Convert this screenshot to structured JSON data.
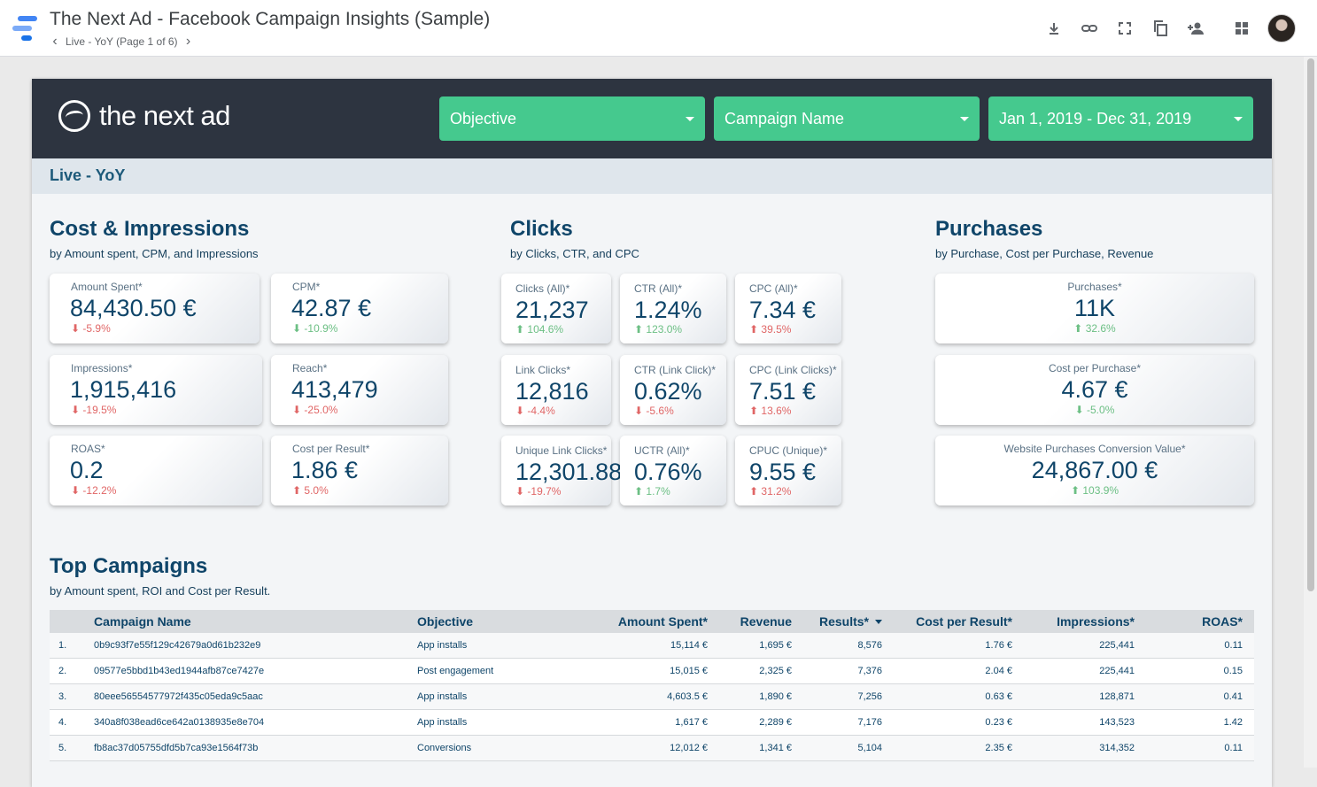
{
  "app": {
    "title": "The Next Ad - Facebook Campaign Insights (Sample)",
    "page_label": "Live - YoY (Page 1 of 6)"
  },
  "toolbar": {
    "icons": [
      "download-icon",
      "link-icon",
      "fullscreen-icon",
      "copy-icon",
      "add-person-icon",
      "apps-grid-icon"
    ]
  },
  "report": {
    "brand": "the next ad",
    "filters": {
      "objective": "Objective",
      "campaign": "Campaign Name",
      "date": "Jan 1, 2019 - Dec 31, 2019"
    },
    "page_name": "Live - YoY",
    "sections": {
      "cost": {
        "title": "Cost & Impressions",
        "subtitle": "by Amount spent, CPM, and Impressions"
      },
      "clicks": {
        "title": "Clicks",
        "subtitle": "by Clicks, CTR, and CPC"
      },
      "purchases": {
        "title": "Purchases",
        "subtitle": "by Purchase, Cost per Purchase, Revenue"
      },
      "top": {
        "title": "Top Campaigns",
        "subtitle": "by Amount spent, ROI and Cost per Result."
      }
    },
    "cards": {
      "amount_spent": {
        "label": "Amount Spent*",
        "value": "84,430.50 €",
        "delta": "-5.9%"
      },
      "cpm": {
        "label": "CPM*",
        "value": "42.87 €",
        "delta": "-10.9%"
      },
      "impressions": {
        "label": "Impressions*",
        "value": "1,915,416",
        "delta": "-19.5%"
      },
      "reach": {
        "label": "Reach*",
        "value": "413,479",
        "delta": "-25.0%"
      },
      "roas": {
        "label": "ROAS*",
        "value": "0.2",
        "delta": "-12.2%"
      },
      "cost_per_result": {
        "label": "Cost per Result*",
        "value": "1.86 €",
        "delta": "5.0%"
      },
      "clicks_all": {
        "label": "Clicks (All)*",
        "value": "21,237",
        "delta": "104.6%"
      },
      "ctr_all": {
        "label": "CTR (All)*",
        "value": "1.24%",
        "delta": "123.0%"
      },
      "cpc_all": {
        "label": "CPC (All)*",
        "value": "7.34 €",
        "delta": "39.5%"
      },
      "link_clicks": {
        "label": "Link Clicks*",
        "value": "12,816",
        "delta": "-4.4%"
      },
      "ctr_link": {
        "label": "CTR (Link Click)*",
        "value": "0.62%",
        "delta": "-5.6%"
      },
      "cpc_link": {
        "label": "CPC (Link Clicks)*",
        "value": "7.51 €",
        "delta": "13.6%"
      },
      "unique_link_clicks": {
        "label": "Unique Link Clicks*",
        "value": "12,301.88",
        "delta": "-19.7%"
      },
      "uctr": {
        "label": "UCTR (All)*",
        "value": "0.76%",
        "delta": "1.7%"
      },
      "cpuc": {
        "label": "CPUC (Unique)*",
        "value": "9.55 €",
        "delta": "31.2%"
      },
      "purchases": {
        "label": "Purchases*",
        "value": "11K",
        "delta": "32.6%"
      },
      "cost_per_purchase": {
        "label": "Cost per Purchase*",
        "value": "4.67 €",
        "delta": "-5.0%"
      },
      "conversion_value": {
        "label": "Website Purchases Conversion Value*",
        "value": "24,867.00 €",
        "delta": "103.9%"
      }
    },
    "table": {
      "headers": {
        "name": "Campaign Name",
        "objective": "Objective",
        "amount": "Amount Spent*",
        "revenue": "Revenue",
        "results": "Results*",
        "cpr": "Cost per Result*",
        "impressions": "Impressions*",
        "roas": "ROAS*"
      },
      "rows": [
        {
          "idx": "1.",
          "name": "0b9c93f7e55f129c42679a0d61b232e9",
          "objective": "App installs",
          "amount": "15,114 €",
          "revenue": "1,695 €",
          "results": "8,576",
          "cpr": "1.76 €",
          "impressions": "225,441",
          "roas": "0.11"
        },
        {
          "idx": "2.",
          "name": "09577e5bbd1b43ed1944afb87ce7427e",
          "objective": "Post engagement",
          "amount": "15,015 €",
          "revenue": "2,325 €",
          "results": "7,376",
          "cpr": "2.04 €",
          "impressions": "225,441",
          "roas": "0.15"
        },
        {
          "idx": "3.",
          "name": "80eee56554577972f435c05eda9c5aac",
          "objective": "App installs",
          "amount": "4,603.5 €",
          "revenue": "1,890 €",
          "results": "7,256",
          "cpr": "0.63 €",
          "impressions": "128,871",
          "roas": "0.41"
        },
        {
          "idx": "4.",
          "name": "340a8f038ead6ce642a0138935e8e704",
          "objective": "App installs",
          "amount": "1,617 €",
          "revenue": "2,289 €",
          "results": "7,176",
          "cpr": "0.23 €",
          "impressions": "143,523",
          "roas": "1.42"
        },
        {
          "idx": "5.",
          "name": "fb8ac37d05755dfd5b7ca93e1564f73b",
          "objective": "Conversions",
          "amount": "12,012 €",
          "revenue": "1,341 €",
          "results": "5,104",
          "cpr": "2.35 €",
          "impressions": "314,352",
          "roas": "0.11"
        }
      ]
    }
  },
  "colors": {
    "header": "#2d3440",
    "filter": "#45c98e",
    "title": "#0f4569",
    "negative": "#e06666",
    "positive": "#6cbf84"
  }
}
